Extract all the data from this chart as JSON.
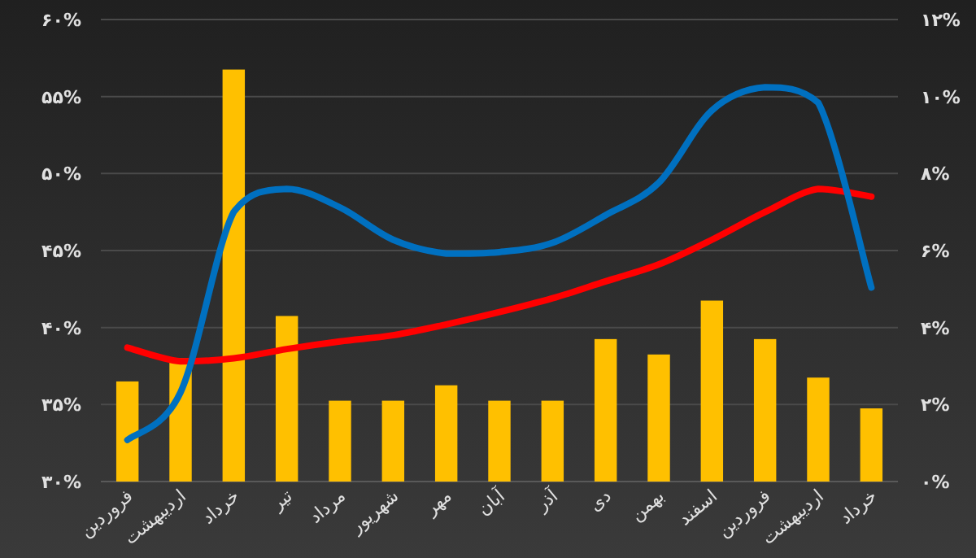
{
  "chart_data": {
    "type": "bar",
    "categories": [
      "فروردین",
      "اردیبهشت",
      "خرداد",
      "تیر",
      "مرداد",
      "شهریور",
      "مهر",
      "آبان",
      "آذر",
      "دی",
      "بهمن",
      "اسفند",
      "فروردین",
      "اردیبهشت",
      "خرداد"
    ],
    "series": [
      {
        "axis": "y2",
        "color": "#ffc000",
        "values": [
          2.6,
          3.2,
          10.7,
          4.3,
          2.1,
          2.1,
          2.5,
          2.1,
          2.1,
          3.7,
          3.3,
          4.7,
          3.7,
          2.7,
          1.9
        ]
      },
      {
        "type": "line",
        "axis": "y",
        "color": "#ff0000",
        "values": [
          38.7,
          37.8,
          38.0,
          38.6,
          39.1,
          39.5,
          40.2,
          41.0,
          41.9,
          43.0,
          44.1,
          45.7,
          47.5,
          49.0,
          48.5
        ]
      },
      {
        "type": "line",
        "axis": "y",
        "color": "#0070c0",
        "values": [
          32.7,
          35.8,
          47.5,
          49.0,
          47.8,
          45.7,
          44.8,
          44.9,
          45.5,
          47.3,
          49.4,
          54.1,
          55.6,
          54.6,
          42.6
        ]
      }
    ],
    "ylim": [
      30,
      60
    ],
    "yticks": [
      {
        "value": 30,
        "label": "۳۰%"
      },
      {
        "value": 35,
        "label": "۳۵%"
      },
      {
        "value": 40,
        "label": "۴۰%"
      },
      {
        "value": 45,
        "label": "۴۵%"
      },
      {
        "value": 50,
        "label": "۵۰%"
      },
      {
        "value": 55,
        "label": "۵۵%"
      },
      {
        "value": 60,
        "label": "۶۰%"
      }
    ],
    "y2lim": [
      0,
      12
    ],
    "y2ticks": [
      {
        "value": 0,
        "label": "۰%"
      },
      {
        "value": 2,
        "label": "۲%"
      },
      {
        "value": 4,
        "label": "۴%"
      },
      {
        "value": 6,
        "label": "۶%"
      },
      {
        "value": 8,
        "label": "۸%"
      },
      {
        "value": 10,
        "label": "۱۰%"
      },
      {
        "value": 12,
        "label": "۱۲%"
      }
    ],
    "grid": "y"
  }
}
